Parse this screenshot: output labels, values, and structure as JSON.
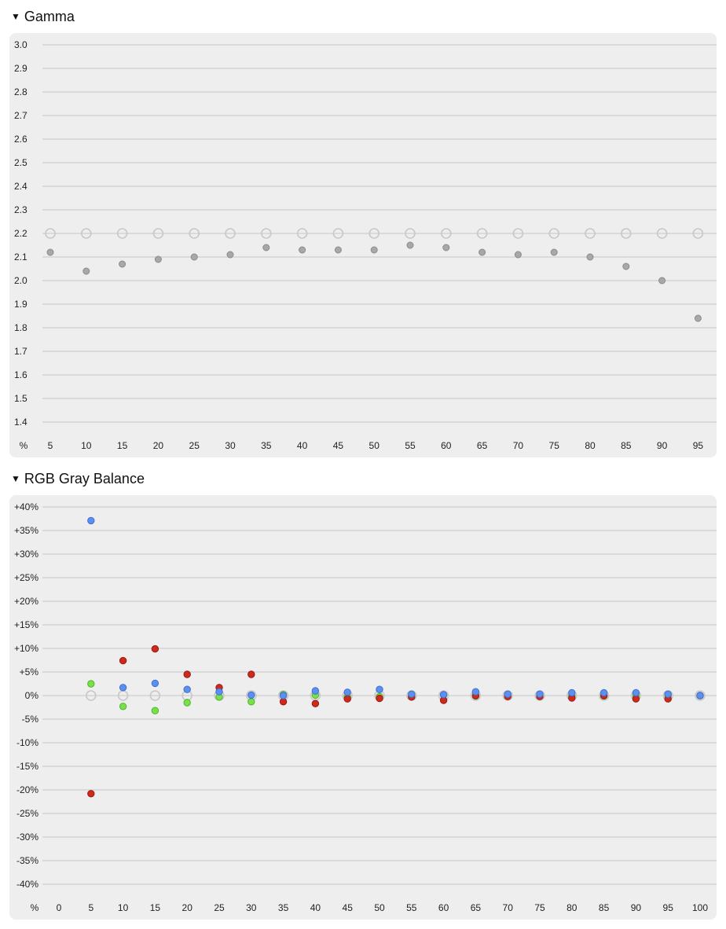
{
  "sections": {
    "gamma": {
      "title": "Gamma",
      "triangle": "▼"
    },
    "gray": {
      "title": "RGB Gray Balance",
      "triangle": "▼"
    }
  },
  "chart_data": [
    {
      "type": "scatter",
      "title": "Gamma",
      "x_unit_label": "%",
      "x": [
        5,
        10,
        15,
        20,
        25,
        30,
        35,
        40,
        45,
        50,
        55,
        60,
        65,
        70,
        75,
        80,
        85,
        90,
        95
      ],
      "ylim": [
        1.4,
        3.0
      ],
      "y_ticks": [
        "3.0",
        "2.9",
        "2.8",
        "2.7",
        "2.6",
        "2.5",
        "2.4",
        "2.3",
        "2.2",
        "2.1",
        "2.0",
        "1.9",
        "1.8",
        "1.7",
        "1.6",
        "1.5",
        "1.4"
      ],
      "grid": true,
      "series": [
        {
          "role": "target",
          "color": "#c8c8c8",
          "marker": "hollow-circle",
          "values": [
            2.2,
            2.2,
            2.2,
            2.2,
            2.2,
            2.2,
            2.2,
            2.2,
            2.2,
            2.2,
            2.2,
            2.2,
            2.2,
            2.2,
            2.2,
            2.2,
            2.2,
            2.2,
            2.2
          ]
        },
        {
          "role": "measured",
          "color": "#a8a8a8",
          "marker": "filled-circle",
          "values": [
            2.12,
            2.04,
            2.07,
            2.09,
            2.1,
            2.11,
            2.14,
            2.13,
            2.13,
            2.13,
            2.15,
            2.14,
            2.12,
            2.11,
            2.12,
            2.1,
            2.06,
            2.0,
            1.84
          ]
        }
      ]
    },
    {
      "type": "scatter",
      "title": "RGB Gray Balance",
      "x_unit_label": "%",
      "x": [
        0,
        5,
        10,
        15,
        20,
        25,
        30,
        35,
        40,
        45,
        50,
        55,
        60,
        65,
        70,
        75,
        80,
        85,
        90,
        95,
        100
      ],
      "ylim": [
        -40,
        40
      ],
      "y_ticks": [
        "+40%",
        "+35%",
        "+30%",
        "+25%",
        "+20%",
        "+15%",
        "+10%",
        "+5%",
        "0%",
        "-5%",
        "-10%",
        "-15%",
        "-20%",
        "-25%",
        "-30%",
        "-35%",
        "-40%"
      ],
      "grid": true,
      "series": [
        {
          "role": "target",
          "color": "#c8c8c8",
          "marker": "hollow-circle",
          "points": [
            [
              5,
              0
            ],
            [
              10,
              0
            ],
            [
              15,
              0
            ],
            [
              20,
              0
            ],
            [
              25,
              0
            ],
            [
              30,
              0
            ],
            [
              35,
              0
            ],
            [
              40,
              0
            ],
            [
              45,
              0
            ],
            [
              50,
              0
            ],
            [
              55,
              0
            ],
            [
              60,
              0
            ],
            [
              65,
              0
            ],
            [
              70,
              0
            ],
            [
              75,
              0
            ],
            [
              80,
              0
            ],
            [
              85,
              0
            ],
            [
              90,
              0
            ],
            [
              95,
              0
            ],
            [
              100,
              0
            ]
          ]
        },
        {
          "role": "green",
          "color": "#77e04a",
          "marker": "filled-circle",
          "points": [
            [
              5,
              2.5
            ],
            [
              10,
              -2.3
            ],
            [
              15,
              -3.2
            ],
            [
              20,
              -1.5
            ],
            [
              25,
              -0.3
            ],
            [
              30,
              -1.3
            ],
            [
              35,
              0.2
            ],
            [
              40,
              0.1
            ],
            [
              45,
              -0.2
            ],
            [
              50,
              -0.2
            ],
            [
              55,
              0
            ],
            [
              60,
              0.1
            ],
            [
              65,
              -0.1
            ],
            [
              70,
              0
            ],
            [
              75,
              0
            ],
            [
              80,
              0
            ],
            [
              85,
              -0.1
            ],
            [
              90,
              0
            ],
            [
              95,
              0
            ],
            [
              100,
              0
            ]
          ]
        },
        {
          "role": "red",
          "color": "#cc2a1e",
          "marker": "filled-circle",
          "points": [
            [
              5,
              -20.8
            ],
            [
              10,
              7.4
            ],
            [
              15,
              9.9
            ],
            [
              20,
              4.5
            ],
            [
              25,
              1.7
            ],
            [
              30,
              4.5
            ],
            [
              35,
              -1.3
            ],
            [
              40,
              -1.7
            ],
            [
              45,
              -0.7
            ],
            [
              50,
              -0.6
            ],
            [
              55,
              -0.3
            ],
            [
              60,
              -1.0
            ],
            [
              65,
              0
            ],
            [
              70,
              -0.2
            ],
            [
              75,
              -0.2
            ],
            [
              80,
              -0.5
            ],
            [
              85,
              0
            ],
            [
              90,
              -0.7
            ],
            [
              95,
              -0.7
            ],
            [
              100,
              0
            ]
          ]
        },
        {
          "role": "blue",
          "color": "#5b8ff0",
          "marker": "filled-circle",
          "points": [
            [
              5,
              37.1
            ],
            [
              10,
              1.7
            ],
            [
              15,
              2.6
            ],
            [
              20,
              1.3
            ],
            [
              25,
              0.8
            ],
            [
              30,
              0.1
            ],
            [
              35,
              0
            ],
            [
              40,
              1.0
            ],
            [
              45,
              0.7
            ],
            [
              50,
              1.3
            ],
            [
              55,
              0.3
            ],
            [
              60,
              0.2
            ],
            [
              65,
              0.8
            ],
            [
              70,
              0.3
            ],
            [
              75,
              0.3
            ],
            [
              80,
              0.6
            ],
            [
              85,
              0.6
            ],
            [
              90,
              0.6
            ],
            [
              95,
              0.3
            ],
            [
              100,
              0
            ]
          ]
        }
      ]
    }
  ]
}
